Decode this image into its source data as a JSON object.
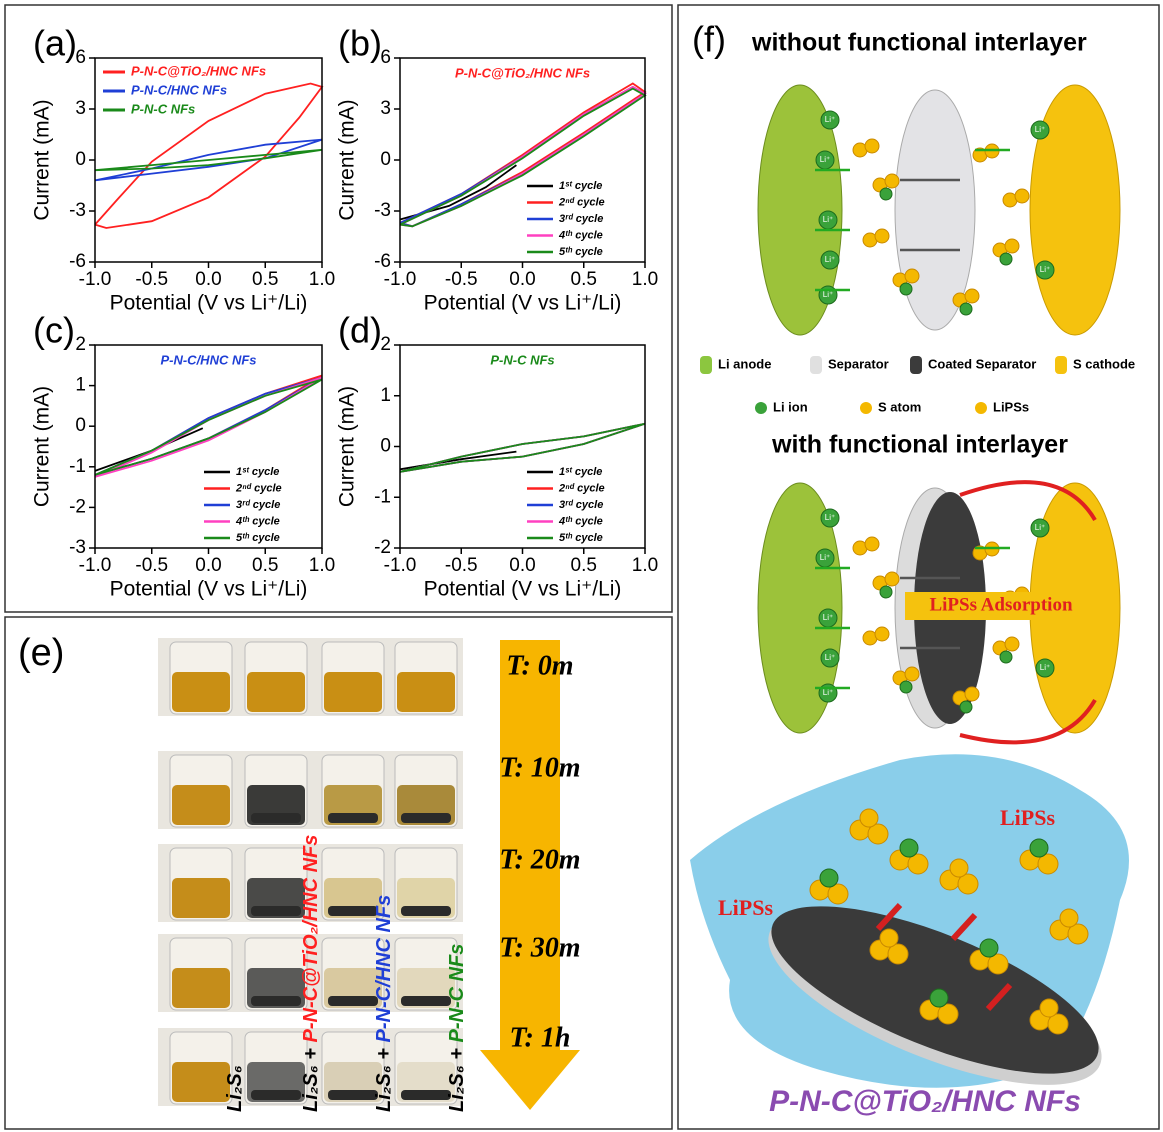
{
  "chart_data": [
    {
      "type": "line",
      "panel": "(a)",
      "xlabel": "Potential (V vs Li⁺/Li)",
      "ylabel": "Current (mA)",
      "xlim": [
        -1,
        1
      ],
      "ylim": [
        -6,
        6
      ],
      "xticks": [
        {
          "value": -1,
          "label": "-1.0"
        },
        -0.5,
        {
          "value": 0,
          "label": "0.0"
        },
        0.5,
        {
          "value": 1,
          "label": "1.0"
        }
      ],
      "yticks": [
        -6,
        -3,
        0,
        3,
        6
      ],
      "legend": "upper left",
      "series": [
        {
          "name": "P-N-C@TiO₂/HNC NFs",
          "color": "#ff2020",
          "x": [
            -1,
            -0.8,
            -0.5,
            0,
            0.5,
            0.9,
            1,
            0.8,
            0.5,
            0,
            -0.5,
            -0.9,
            -1
          ],
          "values": [
            -3.8,
            -2.3,
            -0.1,
            2.3,
            3.9,
            4.5,
            4.3,
            2.5,
            0.2,
            -2.2,
            -3.6,
            -4,
            -3.8
          ]
        },
        {
          "name": "P-N-C/HNC NFs",
          "color": "#1f3fd6",
          "x": [
            -1,
            -0.5,
            0,
            0.5,
            1,
            0.5,
            0,
            -0.5,
            -1
          ],
          "values": [
            -1.2,
            -0.5,
            0.3,
            0.9,
            1.2,
            0.1,
            -0.4,
            -0.8,
            -1.2
          ]
        },
        {
          "name": "P-N-C NFs",
          "color": "#1a8a1a",
          "x": [
            -1,
            -0.5,
            0,
            0.5,
            1,
            0.5,
            0,
            -0.5,
            -1
          ],
          "values": [
            -0.6,
            -0.3,
            0,
            0.3,
            0.6,
            0.1,
            -0.3,
            -0.5,
            -0.6
          ]
        }
      ]
    },
    {
      "type": "line",
      "panel": "(b)",
      "xlabel": "Potential (V vs Li⁺/Li)",
      "ylabel": "Current (mA)",
      "annotation": "P-N-C@TiO₂/HNC NFs",
      "annotation_color": "#ff2020",
      "xlim": [
        -1,
        1
      ],
      "ylim": [
        -6,
        6
      ],
      "xticks": [
        {
          "value": -1,
          "label": "-1.0"
        },
        -0.5,
        {
          "value": 0,
          "label": "0.0"
        },
        0.5,
        {
          "value": 1,
          "label": "1.0"
        }
      ],
      "yticks": [
        -6,
        -3,
        0,
        3,
        6
      ],
      "legend": "lower right",
      "series": [
        {
          "name": "1ˢᵗ cycle",
          "color": "#000000",
          "x": [
            -0.05,
            -0.3,
            -0.6,
            -1
          ],
          "values": [
            -0.3,
            -1.6,
            -2.7,
            -3.5
          ]
        },
        {
          "name": "2ⁿᵈ cycle",
          "color": "#ff2020",
          "x": [
            -1,
            -0.5,
            0,
            0.5,
            0.9,
            1,
            0.5,
            0,
            -0.5,
            -0.9,
            -1
          ],
          "values": [
            -3.7,
            -2,
            0.3,
            2.8,
            4.5,
            4,
            1.6,
            -0.7,
            -2.6,
            -3.9,
            -3.7
          ]
        },
        {
          "name": "3ʳᵈ cycle",
          "color": "#1f3fd6",
          "x": [
            -1,
            -0.5,
            0,
            0.5,
            0.9,
            1,
            0.5,
            0,
            -0.5,
            -0.9,
            -1
          ],
          "values": [
            -3.7,
            -2,
            0.2,
            2.7,
            4.3,
            3.9,
            1.5,
            -0.8,
            -2.6,
            -3.9,
            -3.7
          ]
        },
        {
          "name": "4ᵗʰ cycle",
          "color": "#ff40c0",
          "x": [
            -1,
            -0.5,
            0,
            0.5,
            0.9,
            1,
            0.5,
            0,
            -0.5,
            -0.9,
            -1
          ],
          "values": [
            -3.8,
            -2.1,
            0.2,
            2.7,
            4.3,
            3.9,
            1.5,
            -0.8,
            -2.7,
            -3.9,
            -3.8
          ]
        },
        {
          "name": "5ᵗʰ cycle",
          "color": "#1a8a1a",
          "x": [
            -1,
            -0.5,
            0,
            0.5,
            0.9,
            1,
            0.5,
            0,
            -0.5,
            -0.9,
            -1
          ],
          "values": [
            -3.8,
            -2.1,
            0.1,
            2.6,
            4.2,
            3.8,
            1.4,
            -0.9,
            -2.7,
            -3.9,
            -3.8
          ]
        }
      ]
    },
    {
      "type": "line",
      "panel": "(c)",
      "xlabel": "Potential (V vs Li⁺/Li)",
      "ylabel": "Current (mA)",
      "annotation": "P-N-C/HNC NFs",
      "annotation_color": "#1f3fd6",
      "xlim": [
        -1,
        1
      ],
      "ylim": [
        -3,
        2
      ],
      "xticks": [
        {
          "value": -1,
          "label": "-1.0"
        },
        -0.5,
        {
          "value": 0,
          "label": "0.0"
        },
        0.5,
        {
          "value": 1,
          "label": "1.0"
        }
      ],
      "yticks": [
        -3,
        -2,
        -1,
        0,
        1,
        2
      ],
      "legend": "lower right",
      "series": [
        {
          "name": "1ˢᵗ cycle",
          "color": "#000000",
          "x": [
            -0.05,
            -0.5,
            -1
          ],
          "values": [
            -0.05,
            -0.6,
            -1.1
          ]
        },
        {
          "name": "2ⁿᵈ cycle",
          "color": "#ff2020",
          "x": [
            -1,
            -0.5,
            0,
            0.5,
            1,
            0.5,
            0,
            -0.5,
            -1
          ],
          "values": [
            -1.2,
            -0.6,
            0.2,
            0.8,
            1.25,
            0.4,
            -0.3,
            -0.8,
            -1.2
          ]
        },
        {
          "name": "3ʳᵈ cycle",
          "color": "#1f3fd6",
          "x": [
            -1,
            -0.5,
            0,
            0.5,
            1,
            0.5,
            0,
            -0.5,
            -1
          ],
          "values": [
            -1.2,
            -0.6,
            0.2,
            0.8,
            1.2,
            0.4,
            -0.3,
            -0.8,
            -1.2
          ]
        },
        {
          "name": "4ᵗʰ cycle",
          "color": "#ff40c0",
          "x": [
            -1,
            -0.5,
            0,
            0.5,
            1,
            0.5,
            0,
            -0.5,
            -1
          ],
          "values": [
            -1.25,
            -0.65,
            0.15,
            0.75,
            1.2,
            0.35,
            -0.35,
            -0.85,
            -1.25
          ]
        },
        {
          "name": "5ᵗʰ cycle",
          "color": "#1a8a1a",
          "x": [
            -1,
            -0.5,
            0,
            0.5,
            1,
            0.5,
            0,
            -0.5,
            -1
          ],
          "values": [
            -1.2,
            -0.6,
            0.15,
            0.75,
            1.15,
            0.35,
            -0.3,
            -0.8,
            -1.2
          ]
        }
      ]
    },
    {
      "type": "line",
      "panel": "(d)",
      "xlabel": "Potential (V vs Li⁺/Li)",
      "ylabel": "Current (mA)",
      "annotation": "P-N-C NFs",
      "annotation_color": "#1a8a1a",
      "xlim": [
        -1,
        1
      ],
      "ylim": [
        -2,
        2
      ],
      "xticks": [
        {
          "value": -1,
          "label": "-1.0"
        },
        -0.5,
        {
          "value": 0,
          "label": "0.0"
        },
        0.5,
        {
          "value": 1,
          "label": "1.0"
        }
      ],
      "yticks": [
        -2,
        -1,
        0,
        1,
        2
      ],
      "legend": "lower right",
      "series": [
        {
          "name": "1ˢᵗ cycle",
          "color": "#000000",
          "x": [
            -0.05,
            -0.5,
            -1
          ],
          "values": [
            -0.1,
            -0.25,
            -0.45
          ]
        },
        {
          "name": "2ⁿᵈ cycle",
          "color": "#ff2020",
          "x": [
            -1,
            -0.5,
            0,
            0.5,
            1,
            0.5,
            0,
            -0.5,
            -1
          ],
          "values": [
            -0.5,
            -0.2,
            0.05,
            0.2,
            0.45,
            0.05,
            -0.2,
            -0.3,
            -0.5
          ]
        },
        {
          "name": "3ʳᵈ cycle",
          "color": "#1f3fd6",
          "x": [
            -1,
            -0.5,
            0,
            0.5,
            1,
            0.5,
            0,
            -0.5,
            -1
          ],
          "values": [
            -0.5,
            -0.2,
            0.05,
            0.2,
            0.45,
            0.05,
            -0.2,
            -0.3,
            -0.5
          ]
        },
        {
          "name": "4ᵗʰ cycle",
          "color": "#ff40c0",
          "x": [
            -1,
            -0.5,
            0,
            0.5,
            1,
            0.5,
            0,
            -0.5,
            -1
          ],
          "values": [
            -0.5,
            -0.2,
            0.05,
            0.2,
            0.45,
            0.05,
            -0.2,
            -0.3,
            -0.5
          ]
        },
        {
          "name": "5ᵗʰ cycle",
          "color": "#1a8a1a",
          "x": [
            -1,
            -0.5,
            0,
            0.5,
            1,
            0.5,
            0,
            -0.5,
            -1
          ],
          "values": [
            -0.5,
            -0.2,
            0.05,
            0.2,
            0.45,
            0.05,
            -0.2,
            -0.3,
            -0.5
          ]
        }
      ]
    }
  ],
  "panel_e": {
    "label": "(e)",
    "times": [
      "T: 0m",
      "T: 10m",
      "T: 20m",
      "T: 30m",
      "T: 1h"
    ],
    "samples": [
      {
        "prefix": "Li₂S₆"
      },
      {
        "prefix": "Li₂S₆ + ",
        "name": "P-N-C@TiO₂/HNC NFs",
        "color": "#ff2020"
      },
      {
        "prefix": "Li₂S₆ + ",
        "name": "P-N-C/HNC NFs",
        "color": "#1f3fd6"
      },
      {
        "prefix": "Li₂S₆ + ",
        "name": "P-N-C NFs",
        "color": "#1a8a1a"
      }
    ]
  },
  "panel_f": {
    "label": "(f)",
    "title_top": "without functional interlayer",
    "legend": [
      "Li anode",
      "Separator",
      "Coated Separator",
      "S cathode",
      "Li ion",
      "S atom",
      "LiPSs"
    ],
    "title_bottom": "with functional interlayer",
    "adsorption": "LiPSs Adsorption",
    "lipss_labels": [
      "LiPSs",
      "LiPSs"
    ],
    "material": "P-N-C@TiO₂/HNC NFs",
    "ion": "Li⁺"
  }
}
